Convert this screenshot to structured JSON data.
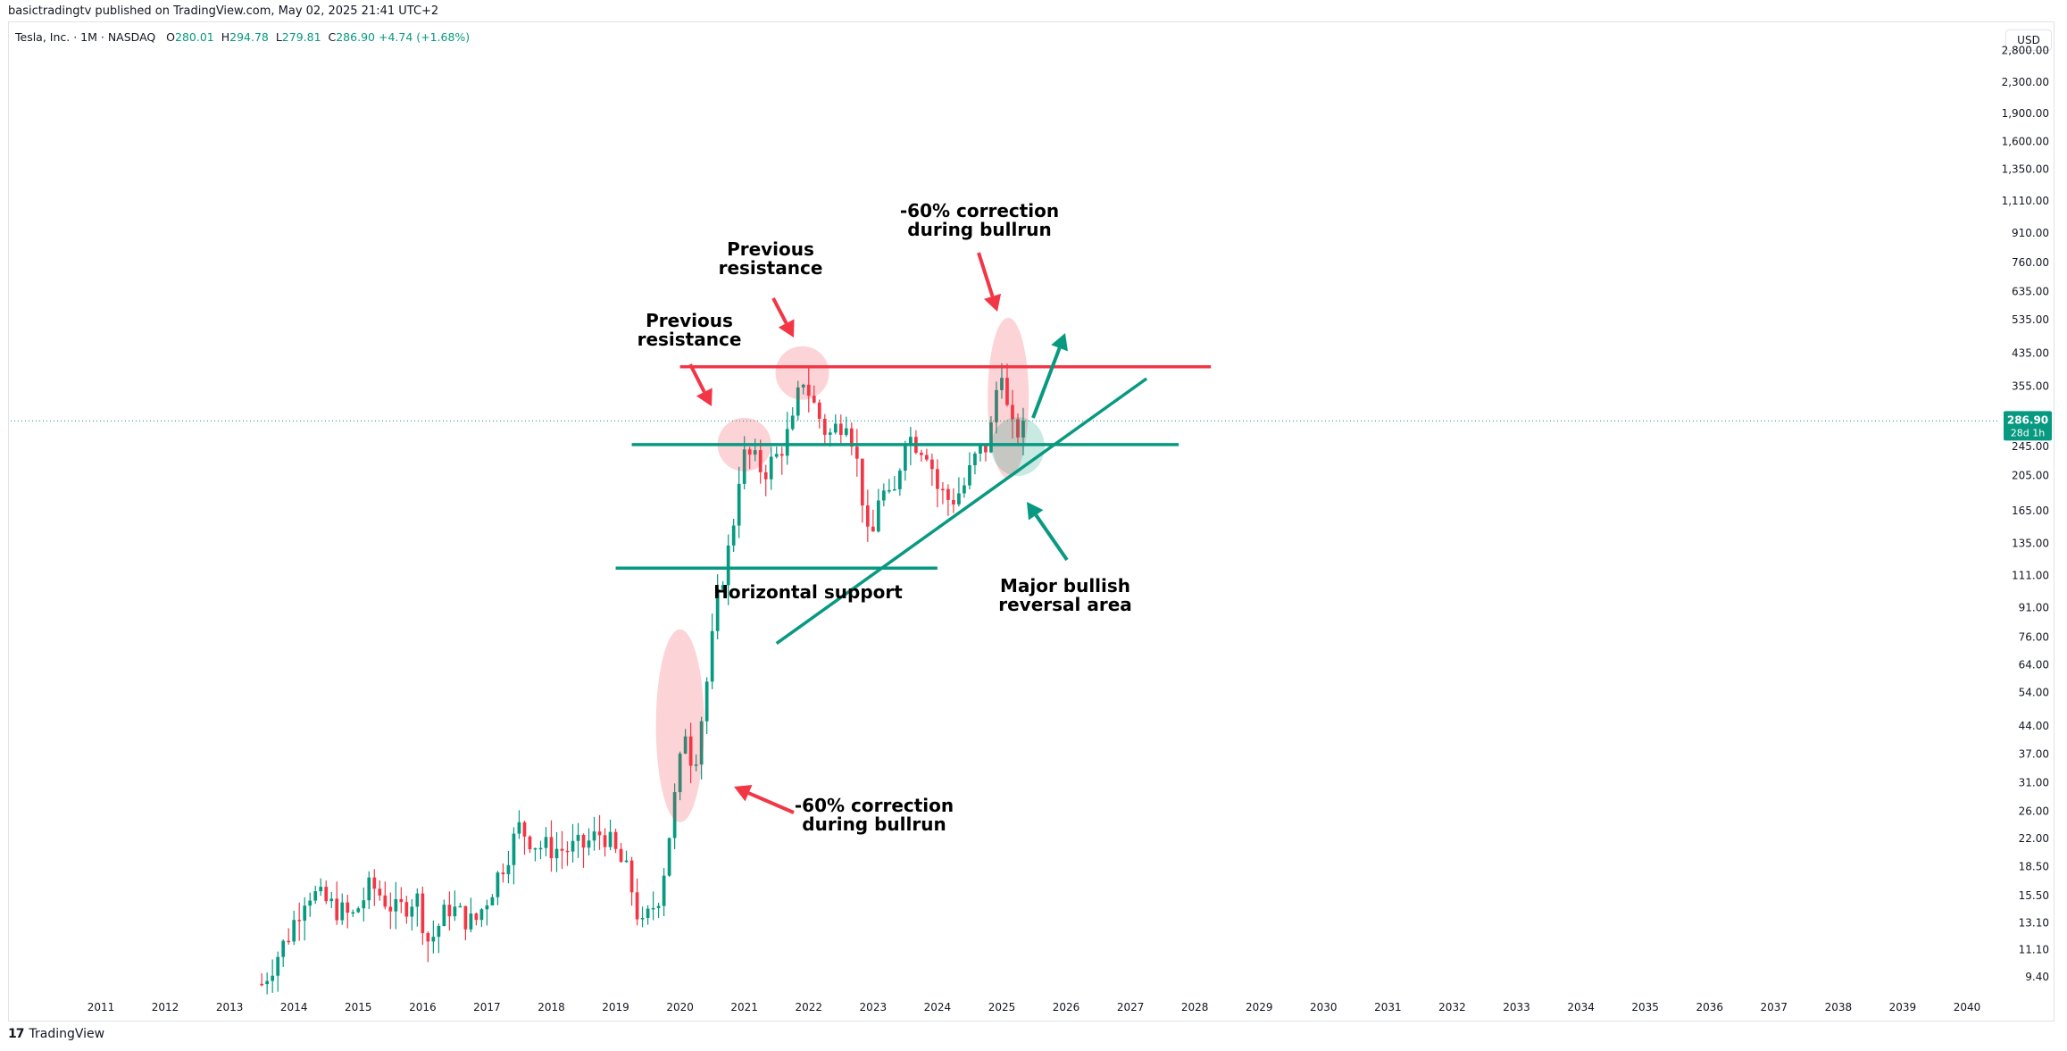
{
  "header": {
    "publisher_line": "basictradingtv published on TradingView.com, May 02, 2025 21:41 UTC+2"
  },
  "legend": {
    "symbol": "Tesla, Inc. · 1M · NASDAQ",
    "open_label": "O",
    "open": "280.01",
    "high_label": "H",
    "high": "294.78",
    "low_label": "L",
    "low": "279.81",
    "close_label": "C",
    "close": "286.90",
    "change": "+4.74 (+1.68%)"
  },
  "currency": "USD",
  "footer": {
    "brand": "TradingView"
  },
  "colors": {
    "up": "#089981",
    "down": "#f23645",
    "resistance": "#f23645",
    "support": "#089981"
  },
  "chart_data": {
    "type": "candlestick",
    "scale": "log",
    "ylim": [
      8.7,
      2900
    ],
    "y_ticks": [
      9.4,
      11.1,
      13.1,
      15.5,
      18.5,
      22.0,
      26.0,
      31.0,
      37.0,
      44.0,
      54.0,
      64.0,
      76.0,
      91.0,
      111.0,
      135.0,
      165.0,
      205.0,
      245.0,
      355.0,
      435.0,
      535.0,
      635.0,
      760.0,
      910.0,
      1110.0,
      1350.0,
      1600.0,
      1900.0,
      2300.0,
      2800.0
    ],
    "y_tick_labels": [
      "9.40",
      "11.10",
      "13.10",
      "15.50",
      "18.50",
      "22.00",
      "26.00",
      "31.00",
      "37.00",
      "44.00",
      "54.00",
      "64.00",
      "76.00",
      "91.00",
      "111.00",
      "135.00",
      "165.00",
      "205.00",
      "245.00",
      "355.00",
      "435.00",
      "535.00",
      "635.00",
      "760.00",
      "910.00",
      "1,110.00",
      "1,350.00",
      "1,600.00",
      "1,900.00",
      "2,300.00",
      "2,800.00"
    ],
    "x_ticks": [
      2011,
      2012,
      2013,
      2014,
      2015,
      2016,
      2017,
      2018,
      2019,
      2020,
      2021,
      2022,
      2023,
      2024,
      2025,
      2026,
      2027,
      2028,
      2029,
      2030,
      2031,
      2032,
      2033,
      2034,
      2035,
      2036,
      2037,
      2038,
      2039,
      2040
    ],
    "last_price": {
      "value": 286.9,
      "label": "286.90",
      "countdown": "28d 1h"
    },
    "price_path": [
      [
        2013.5,
        9.0
      ],
      [
        2013.9,
        12.0
      ],
      [
        2014.2,
        16.0
      ],
      [
        2014.6,
        14.5
      ],
      [
        2014.9,
        13.5
      ],
      [
        2015.2,
        16.5
      ],
      [
        2015.6,
        14.0
      ],
      [
        2015.9,
        15.5
      ],
      [
        2016.1,
        11.5
      ],
      [
        2016.4,
        14.5
      ],
      [
        2016.8,
        13.0
      ],
      [
        2017.1,
        16.5
      ],
      [
        2017.5,
        23.5
      ],
      [
        2017.8,
        21.0
      ],
      [
        2018.2,
        20.5
      ],
      [
        2018.5,
        21.0
      ],
      [
        2018.8,
        23.0
      ],
      [
        2019.2,
        17.5
      ],
      [
        2019.4,
        12.5
      ],
      [
        2019.7,
        16.0
      ],
      [
        2019.9,
        27.0
      ],
      [
        2020.1,
        45.0
      ],
      [
        2020.2,
        33.0
      ],
      [
        2020.4,
        55.0
      ],
      [
        2020.6,
        100.0
      ],
      [
        2020.8,
        140.0
      ],
      [
        2020.95,
        230.0
      ],
      [
        2021.1,
        230.0
      ],
      [
        2021.3,
        210.0
      ],
      [
        2021.5,
        230.0
      ],
      [
        2021.75,
        280.0
      ],
      [
        2021.9,
        380.0
      ],
      [
        2022.1,
        310.0
      ],
      [
        2022.3,
        260.0
      ],
      [
        2022.6,
        300.0
      ],
      [
        2022.8,
        200.0
      ],
      [
        2022.95,
        125.0
      ],
      [
        2023.1,
        190.0
      ],
      [
        2023.3,
        170.0
      ],
      [
        2023.5,
        265.0
      ],
      [
        2023.7,
        250.0
      ],
      [
        2023.85,
        240.0
      ],
      [
        2024.0,
        190.0
      ],
      [
        2024.2,
        175.0
      ],
      [
        2024.4,
        190.0
      ],
      [
        2024.6,
        230.0
      ],
      [
        2024.8,
        250.0
      ],
      [
        2024.92,
        350.0
      ],
      [
        2025.0,
        405.0
      ],
      [
        2025.1,
        290.0
      ],
      [
        2025.2,
        260.0
      ],
      [
        2025.3,
        282.0
      ],
      [
        2025.33,
        286.9
      ]
    ],
    "lines": [
      {
        "kind": "resistance",
        "y": 400.0,
        "x_start": 2020.0,
        "x_end": 2028.25
      },
      {
        "kind": "support",
        "y": 248.0,
        "x_start": 2019.25,
        "x_end": 2027.75
      },
      {
        "kind": "support",
        "y": 116.0,
        "x_start": 2019.0,
        "x_end": 2024.0
      },
      {
        "kind": "trendline",
        "from": [
          2021.5,
          73.0
        ],
        "to": [
          2027.25,
          372.0
        ]
      }
    ],
    "annotations": [
      {
        "id": "prev-res-1",
        "lines": [
          "Previous",
          "resistance"
        ]
      },
      {
        "id": "prev-res-2",
        "lines": [
          "Previous",
          "resistance"
        ]
      },
      {
        "id": "corr-top",
        "lines": [
          "-60% correction",
          "during bullrun"
        ]
      },
      {
        "id": "corr-bottom",
        "lines": [
          "-60% correction",
          "during bullrun"
        ]
      },
      {
        "id": "horizontal-support",
        "lines": [
          "Horizontal support"
        ]
      },
      {
        "id": "bullish-reversal",
        "lines": [
          "Major bullish",
          "reversal area"
        ]
      }
    ]
  }
}
